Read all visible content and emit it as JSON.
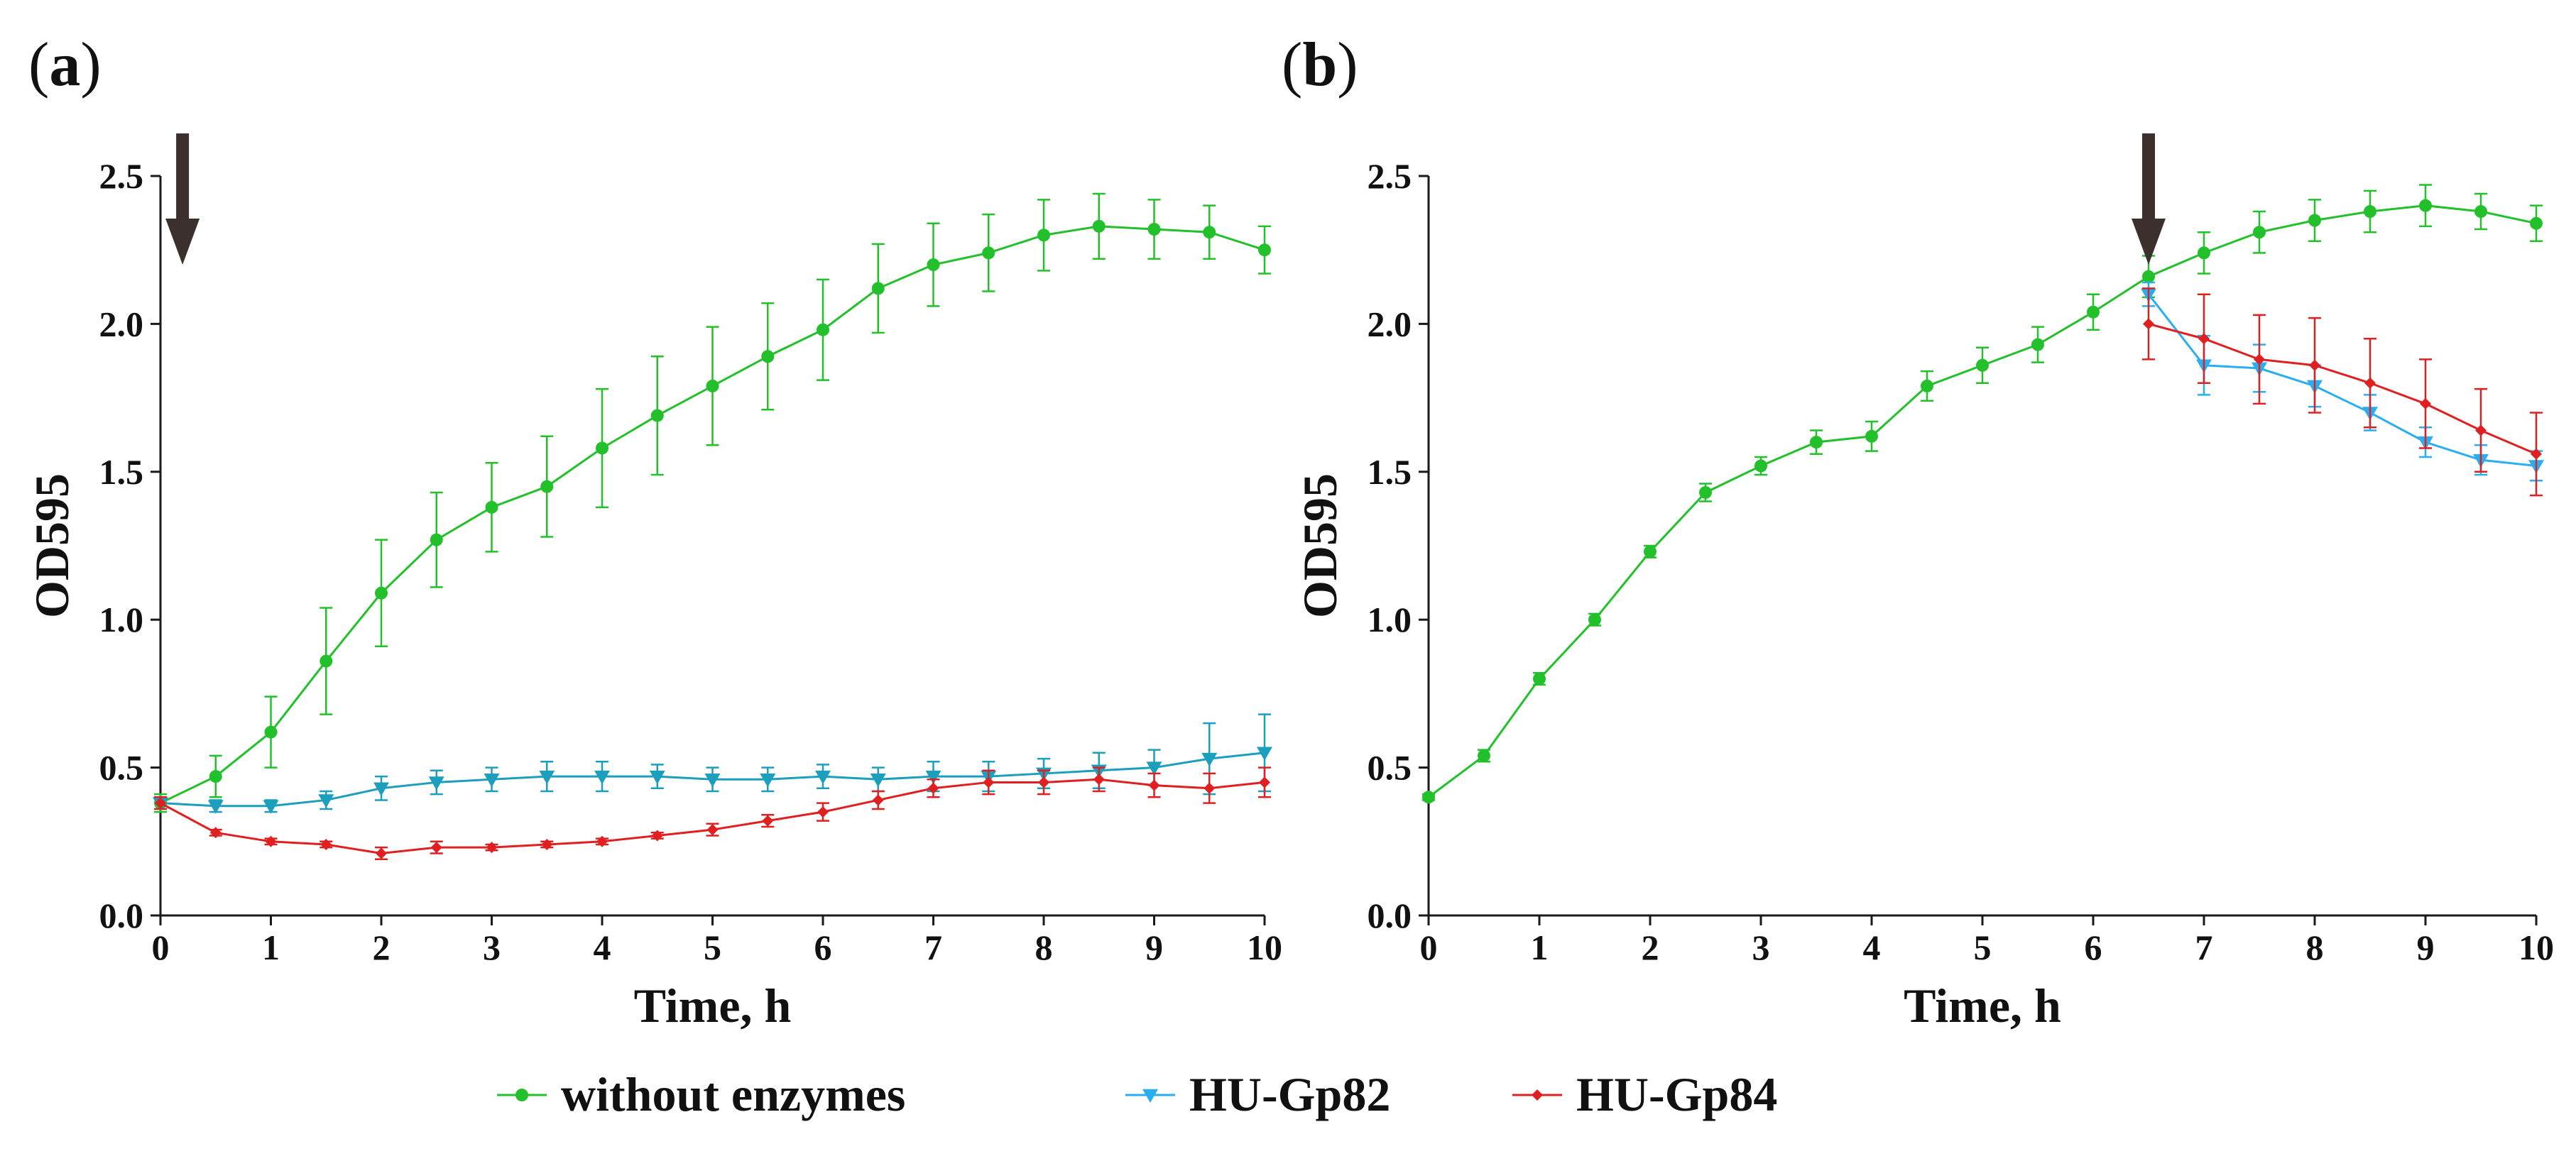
{
  "chart_data": [
    {
      "panel_label": "(a)",
      "type": "line",
      "xlabel": "Time, h",
      "ylabel": "OD595",
      "xlim": [
        0,
        10
      ],
      "ylim": [
        0,
        2.5
      ],
      "xticks": [
        "0",
        "1",
        "2",
        "3",
        "4",
        "5",
        "6",
        "7",
        "8",
        "9",
        "10"
      ],
      "yticks": [
        "0.0",
        "0.5",
        "1.0",
        "1.5",
        "2.0",
        "2.5"
      ],
      "grid": false,
      "arrow_annotation": {
        "x": 0.2
      },
      "series": [
        {
          "name": "without enzymes",
          "color": "#22c02a",
          "marker": "circle",
          "x": [
            0.0,
            0.5,
            1.0,
            1.5,
            2.0,
            2.5,
            3.0,
            3.5,
            4.0,
            4.5,
            5.0,
            5.5,
            6.0,
            6.5,
            7.0,
            7.5,
            8.0,
            8.5,
            9.0,
            9.5,
            10.0
          ],
          "y": [
            0.38,
            0.47,
            0.62,
            0.86,
            1.09,
            1.27,
            1.38,
            1.45,
            1.58,
            1.69,
            1.79,
            1.89,
            1.98,
            2.12,
            2.2,
            2.24,
            2.3,
            2.33,
            2.32,
            2.31,
            2.25
          ],
          "err": [
            0.03,
            0.07,
            0.12,
            0.18,
            0.18,
            0.16,
            0.15,
            0.17,
            0.2,
            0.2,
            0.2,
            0.18,
            0.17,
            0.15,
            0.14,
            0.13,
            0.12,
            0.11,
            0.1,
            0.09,
            0.08
          ]
        },
        {
          "name": "HU-Gp82",
          "color": "#1b9fbd",
          "marker": "triangle-down",
          "x": [
            0.0,
            0.5,
            1.0,
            1.5,
            2.0,
            2.5,
            3.0,
            3.5,
            4.0,
            4.5,
            5.0,
            5.5,
            6.0,
            6.5,
            7.0,
            7.5,
            8.0,
            8.5,
            9.0,
            9.5,
            10.0
          ],
          "y": [
            0.38,
            0.37,
            0.37,
            0.39,
            0.43,
            0.45,
            0.46,
            0.47,
            0.47,
            0.47,
            0.46,
            0.46,
            0.47,
            0.46,
            0.47,
            0.47,
            0.48,
            0.49,
            0.5,
            0.53,
            0.55
          ],
          "err": [
            0.02,
            0.02,
            0.02,
            0.03,
            0.04,
            0.04,
            0.04,
            0.05,
            0.05,
            0.04,
            0.04,
            0.04,
            0.04,
            0.04,
            0.05,
            0.05,
            0.05,
            0.06,
            0.06,
            0.12,
            0.13
          ]
        },
        {
          "name": "HU-Gp84",
          "color": "#e02020",
          "marker": "diamond",
          "x": [
            0.0,
            0.5,
            1.0,
            1.5,
            2.0,
            2.5,
            3.0,
            3.5,
            4.0,
            4.5,
            5.0,
            5.5,
            6.0,
            6.5,
            7.0,
            7.5,
            8.0,
            8.5,
            9.0,
            9.5,
            10.0
          ],
          "y": [
            0.38,
            0.28,
            0.25,
            0.24,
            0.21,
            0.23,
            0.23,
            0.24,
            0.25,
            0.27,
            0.29,
            0.32,
            0.35,
            0.39,
            0.43,
            0.45,
            0.45,
            0.46,
            0.44,
            0.43,
            0.45
          ],
          "err": [
            0.02,
            0.01,
            0.01,
            0.01,
            0.02,
            0.02,
            0.01,
            0.01,
            0.01,
            0.01,
            0.02,
            0.02,
            0.03,
            0.03,
            0.03,
            0.04,
            0.04,
            0.04,
            0.04,
            0.05,
            0.05
          ]
        }
      ]
    },
    {
      "panel_label": "(b)",
      "type": "line",
      "xlabel": "Time, h",
      "ylabel": "OD595",
      "xlim": [
        0,
        10
      ],
      "ylim": [
        0,
        2.5
      ],
      "xticks": [
        "0",
        "1",
        "2",
        "3",
        "4",
        "5",
        "6",
        "7",
        "8",
        "9",
        "10"
      ],
      "yticks": [
        "0.0",
        "0.5",
        "1.0",
        "1.5",
        "2.0",
        "2.5"
      ],
      "grid": false,
      "arrow_annotation": {
        "x": 6.5
      },
      "series": [
        {
          "name": "without enzymes",
          "color": "#22c02a",
          "marker": "circle",
          "x": [
            0.0,
            0.5,
            1.0,
            1.5,
            2.0,
            2.5,
            3.0,
            3.5,
            4.0,
            4.5,
            5.0,
            5.5,
            6.0,
            6.5,
            7.0,
            7.5,
            8.0,
            8.5,
            9.0,
            9.5,
            10.0
          ],
          "y": [
            0.4,
            0.54,
            0.8,
            1.0,
            1.23,
            1.43,
            1.52,
            1.6,
            1.62,
            1.79,
            1.86,
            1.93,
            2.04,
            2.16,
            2.24,
            2.31,
            2.35,
            2.38,
            2.4,
            2.38,
            2.34
          ],
          "err": [
            0.01,
            0.02,
            0.02,
            0.02,
            0.02,
            0.03,
            0.03,
            0.04,
            0.05,
            0.05,
            0.06,
            0.06,
            0.06,
            0.07,
            0.07,
            0.07,
            0.07,
            0.07,
            0.07,
            0.06,
            0.06
          ]
        },
        {
          "name": "HU-Gp82",
          "color": "#2aaef2",
          "marker": "triangle-down",
          "x": [
            6.5,
            7.0,
            7.5,
            8.0,
            8.5,
            9.0,
            9.5,
            10.0
          ],
          "y": [
            2.1,
            1.86,
            1.85,
            1.79,
            1.7,
            1.6,
            1.54,
            1.52
          ],
          "err": [
            0.04,
            0.1,
            0.08,
            0.07,
            0.06,
            0.05,
            0.05,
            0.05
          ]
        },
        {
          "name": "HU-Gp84",
          "color": "#e02020",
          "marker": "diamond",
          "x": [
            6.5,
            7.0,
            7.5,
            8.0,
            8.5,
            9.0,
            9.5,
            10.0
          ],
          "y": [
            2.0,
            1.95,
            1.88,
            1.86,
            1.8,
            1.73,
            1.64,
            1.56
          ],
          "err": [
            0.12,
            0.15,
            0.15,
            0.16,
            0.15,
            0.15,
            0.14,
            0.14
          ]
        }
      ]
    }
  ],
  "legend": {
    "items": [
      {
        "label": "without enzymes",
        "color": "#22c02a",
        "marker": "circle"
      },
      {
        "label": "HU-Gp82",
        "color": "#2aaef2",
        "marker": "triangle-down"
      },
      {
        "label": "HU-Gp84",
        "color": "#e02020",
        "marker": "diamond"
      }
    ]
  }
}
